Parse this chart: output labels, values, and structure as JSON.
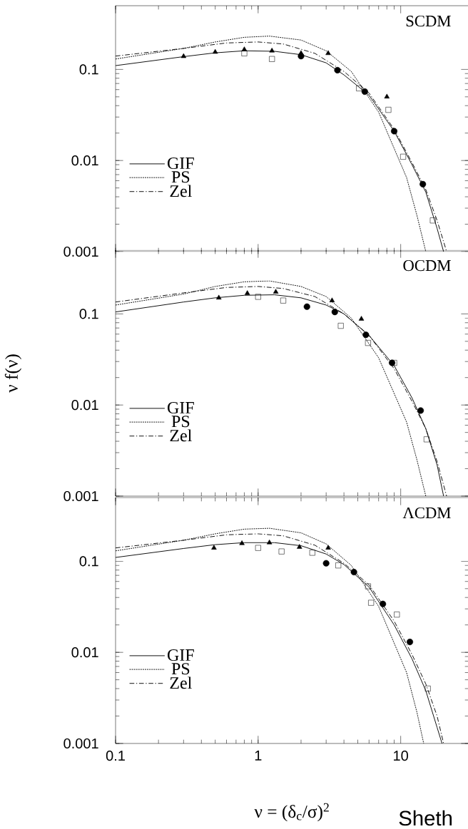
{
  "chart_data": [
    {
      "type": "line",
      "title": "SCDM",
      "log": "xy",
      "xlim": [
        0.1,
        30
      ],
      "ylim": [
        0.001,
        0.5
      ],
      "xticks": [
        0.1,
        1,
        10
      ],
      "yticks": [
        0.001,
        0.01,
        0.1
      ],
      "tick_labels": "y",
      "legend": "left",
      "series": [
        {
          "name": "GIF",
          "type": "line",
          "line_style": "solid",
          "color": "#000000",
          "x": [
            0.1,
            0.3,
            0.5,
            0.8,
            1.3,
            2,
            3,
            4,
            6,
            9,
            12,
            15,
            18,
            20
          ],
          "values": [
            0.11,
            0.138,
            0.152,
            0.16,
            0.158,
            0.145,
            0.118,
            0.087,
            0.052,
            0.021,
            0.009,
            0.0045,
            0.0018,
            0.001
          ]
        },
        {
          "name": "PS",
          "type": "line",
          "line_style": "dotted",
          "color": "#000000",
          "x": [
            0.1,
            0.3,
            0.5,
            0.8,
            1.2,
            2,
            3,
            4.5,
            7,
            11,
            13,
            15
          ],
          "values": [
            0.13,
            0.17,
            0.2,
            0.225,
            0.232,
            0.21,
            0.16,
            0.095,
            0.034,
            0.0065,
            0.0025,
            0.001
          ]
        },
        {
          "name": "Zel",
          "type": "line",
          "line_style": "dashed",
          "color": "#000000",
          "x": [
            0.1,
            0.3,
            0.6,
            1,
            1.5,
            2.5,
            4,
            6,
            9,
            12,
            15,
            18,
            21
          ],
          "values": [
            0.14,
            0.17,
            0.195,
            0.2,
            0.19,
            0.15,
            0.095,
            0.055,
            0.022,
            0.0095,
            0.0048,
            0.0022,
            0.001
          ]
        },
        {
          "type": "scatter",
          "marker": "triangle",
          "color": "#000000",
          "x": [
            0.3,
            0.5,
            0.8,
            1.25,
            2,
            3.1,
            8
          ],
          "values": [
            0.139,
            0.155,
            0.165,
            0.16,
            0.15,
            0.15,
            0.05
          ]
        },
        {
          "type": "scatter",
          "marker": "circle",
          "color": "#000000",
          "x": [
            2,
            3.6,
            5.6,
            9,
            14.3
          ],
          "values": [
            0.14,
            0.098,
            0.057,
            0.021,
            0.0055
          ]
        },
        {
          "type": "scatter",
          "marker": "square",
          "color": "#000000",
          "x": [
            0.8,
            1.25,
            5.1,
            8.2,
            10.4,
            16.8
          ],
          "values": [
            0.15,
            0.13,
            0.062,
            0.036,
            0.011,
            0.0022
          ]
        }
      ]
    },
    {
      "type": "line",
      "title": "OCDM",
      "ylabel": "ν f(ν)",
      "log": "xy",
      "xlim": [
        0.1,
        30
      ],
      "ylim": [
        0.001,
        0.5
      ],
      "xticks": [
        0.1,
        1,
        10
      ],
      "yticks": [
        0.001,
        0.01,
        0.1
      ],
      "tick_labels": "y",
      "legend": "left",
      "series": [
        {
          "name": "GIF",
          "type": "line",
          "line_style": "solid",
          "color": "#000000",
          "x": [
            0.1,
            0.3,
            0.5,
            0.8,
            1.3,
            2,
            3,
            4,
            6,
            9,
            12,
            15,
            18,
            20
          ],
          "values": [
            0.105,
            0.135,
            0.15,
            0.16,
            0.162,
            0.15,
            0.125,
            0.1,
            0.058,
            0.027,
            0.012,
            0.0055,
            0.0022,
            0.001
          ]
        },
        {
          "name": "PS",
          "type": "line",
          "line_style": "dotted",
          "color": "#000000",
          "x": [
            0.1,
            0.3,
            0.5,
            0.8,
            1.2,
            2,
            3,
            4.5,
            7,
            11,
            13,
            15
          ],
          "values": [
            0.125,
            0.165,
            0.2,
            0.225,
            0.23,
            0.2,
            0.155,
            0.09,
            0.033,
            0.0065,
            0.0025,
            0.001
          ]
        },
        {
          "name": "Zel",
          "type": "line",
          "line_style": "dashed",
          "color": "#000000",
          "x": [
            0.1,
            0.3,
            0.6,
            1,
            1.5,
            2.5,
            4,
            6,
            9,
            12,
            15,
            18,
            21
          ],
          "values": [
            0.135,
            0.17,
            0.195,
            0.2,
            0.19,
            0.155,
            0.1,
            0.058,
            0.025,
            0.011,
            0.0055,
            0.0024,
            0.001
          ]
        },
        {
          "type": "scatter",
          "marker": "triangle",
          "color": "#000000",
          "x": [
            0.53,
            0.84,
            1.33,
            3.3,
            5.3
          ],
          "values": [
            0.15,
            0.168,
            0.174,
            0.14,
            0.088
          ]
        },
        {
          "type": "scatter",
          "marker": "circle",
          "color": "#000000",
          "x": [
            2.2,
            3.45,
            5.7,
            8.7,
            13.8
          ],
          "values": [
            0.12,
            0.105,
            0.059,
            0.029,
            0.0087
          ]
        },
        {
          "type": "scatter",
          "marker": "square",
          "color": "#000000",
          "x": [
            1,
            1.5,
            3.8,
            5.9,
            9,
            15.2
          ],
          "values": [
            0.154,
            0.14,
            0.074,
            0.048,
            0.029,
            0.0042
          ]
        }
      ]
    },
    {
      "type": "line",
      "title": "ΛCDM",
      "xlabel": "ν = (δ$_{c}$/σ)$^{2}$",
      "annotations": [
        "Sheth"
      ],
      "log": "xy",
      "xlim": [
        0.1,
        30
      ],
      "ylim": [
        0.001,
        0.5
      ],
      "xticks": [
        0.1,
        1,
        10
      ],
      "yticks": [
        0.001,
        0.01,
        0.1
      ],
      "legend": "left",
      "series": [
        {
          "name": "GIF",
          "type": "line",
          "line_style": "solid",
          "color": "#000000",
          "x": [
            0.1,
            0.3,
            0.5,
            0.8,
            1.3,
            2,
            3,
            4,
            6,
            9,
            12,
            15,
            18,
            19.5
          ],
          "values": [
            0.11,
            0.138,
            0.152,
            0.16,
            0.16,
            0.148,
            0.12,
            0.092,
            0.052,
            0.02,
            0.0085,
            0.0038,
            0.0015,
            0.001
          ]
        },
        {
          "name": "PS",
          "type": "line",
          "line_style": "dotted",
          "color": "#000000",
          "x": [
            0.1,
            0.3,
            0.5,
            0.8,
            1.2,
            2,
            3,
            4.5,
            7,
            11,
            13,
            14.5
          ],
          "values": [
            0.13,
            0.17,
            0.2,
            0.225,
            0.23,
            0.205,
            0.155,
            0.09,
            0.032,
            0.006,
            0.0022,
            0.001
          ]
        },
        {
          "name": "Zel",
          "type": "line",
          "line_style": "dashed",
          "color": "#000000",
          "x": [
            0.1,
            0.3,
            0.6,
            1,
            1.5,
            2.5,
            4,
            6,
            9,
            12,
            15,
            18,
            20
          ],
          "values": [
            0.14,
            0.17,
            0.195,
            0.2,
            0.19,
            0.15,
            0.095,
            0.055,
            0.022,
            0.0095,
            0.0045,
            0.002,
            0.001
          ]
        },
        {
          "type": "scatter",
          "marker": "triangle",
          "color": "#000000",
          "x": [
            0.49,
            0.77,
            1.2,
            1.95,
            3.1
          ],
          "values": [
            0.14,
            0.157,
            0.16,
            0.143,
            0.14
          ]
        },
        {
          "type": "scatter",
          "marker": "circle",
          "color": "#000000",
          "x": [
            3,
            4.7,
            7.5,
            11.6
          ],
          "values": [
            0.095,
            0.076,
            0.034,
            0.013
          ]
        },
        {
          "type": "scatter",
          "marker": "square",
          "color": "#000000",
          "x": [
            1,
            1.46,
            2.4,
            3.65,
            5.9,
            6.2,
            9.4,
            15.5
          ],
          "values": [
            0.14,
            0.128,
            0.124,
            0.09,
            0.053,
            0.035,
            0.026,
            0.004
          ]
        }
      ]
    }
  ]
}
